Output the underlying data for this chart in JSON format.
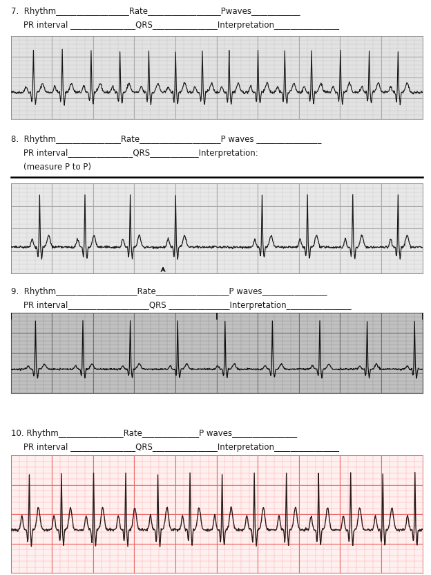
{
  "bg_white": "#ffffff",
  "text_color": "#1a1a1a",
  "ecg_color": "#1a1a1a",
  "sections": [
    {
      "num": "7.",
      "line1_parts": [
        "7.",
        "Rhythm",
        "__________________",
        "Rate",
        "__________________",
        "Pwaves",
        "____________"
      ],
      "line2_parts": [
        "PR interval",
        " ________________",
        "QRS",
        "________________",
        "Interpretation",
        "________________"
      ]
    },
    {
      "num": "8.",
      "line1_parts": [
        "8.",
        "Rhythm",
        "________________",
        "Rate",
        "____________________",
        "P waves",
        " ________________"
      ],
      "line2_parts": [
        "PR interval",
        "________________",
        "QRS",
        "____________",
        "Interpretation:"
      ],
      "line3": "(measure P to P)"
    },
    {
      "num": "9.",
      "line1_parts": [
        "9.",
        "Rhythm",
        "____________________",
        "Rate",
        "__________________",
        "P waves",
        "________________"
      ],
      "line2_parts": [
        "PR interval",
        "____________________",
        "QRS ",
        "_______________",
        "Interpretation",
        "________________"
      ]
    },
    {
      "num": "10.",
      "line1_parts": [
        "10.",
        "Rhythm",
        "________________",
        "Rate",
        "______________",
        "P waves",
        "________________"
      ],
      "line2_parts": [
        "PR interval ",
        "________________",
        "QRS",
        "________________",
        "Interpretation",
        "________________"
      ]
    }
  ],
  "ecg1_bg": "#e2e2e2",
  "ecg1_minor": "#c8c8c8",
  "ecg1_major": "#aaaaaa",
  "ecg2_bg": "#e8e8e8",
  "ecg2_minor": "#cccccc",
  "ecg2_major": "#aaaaaa",
  "ecg3_bg": "#c0c0c0",
  "ecg3_minor": "#989898",
  "ecg3_major": "#707070",
  "ecg4_bg": "#fff0f0",
  "ecg4_minor": "#ffaaaa",
  "ecg4_major": "#ee6666"
}
